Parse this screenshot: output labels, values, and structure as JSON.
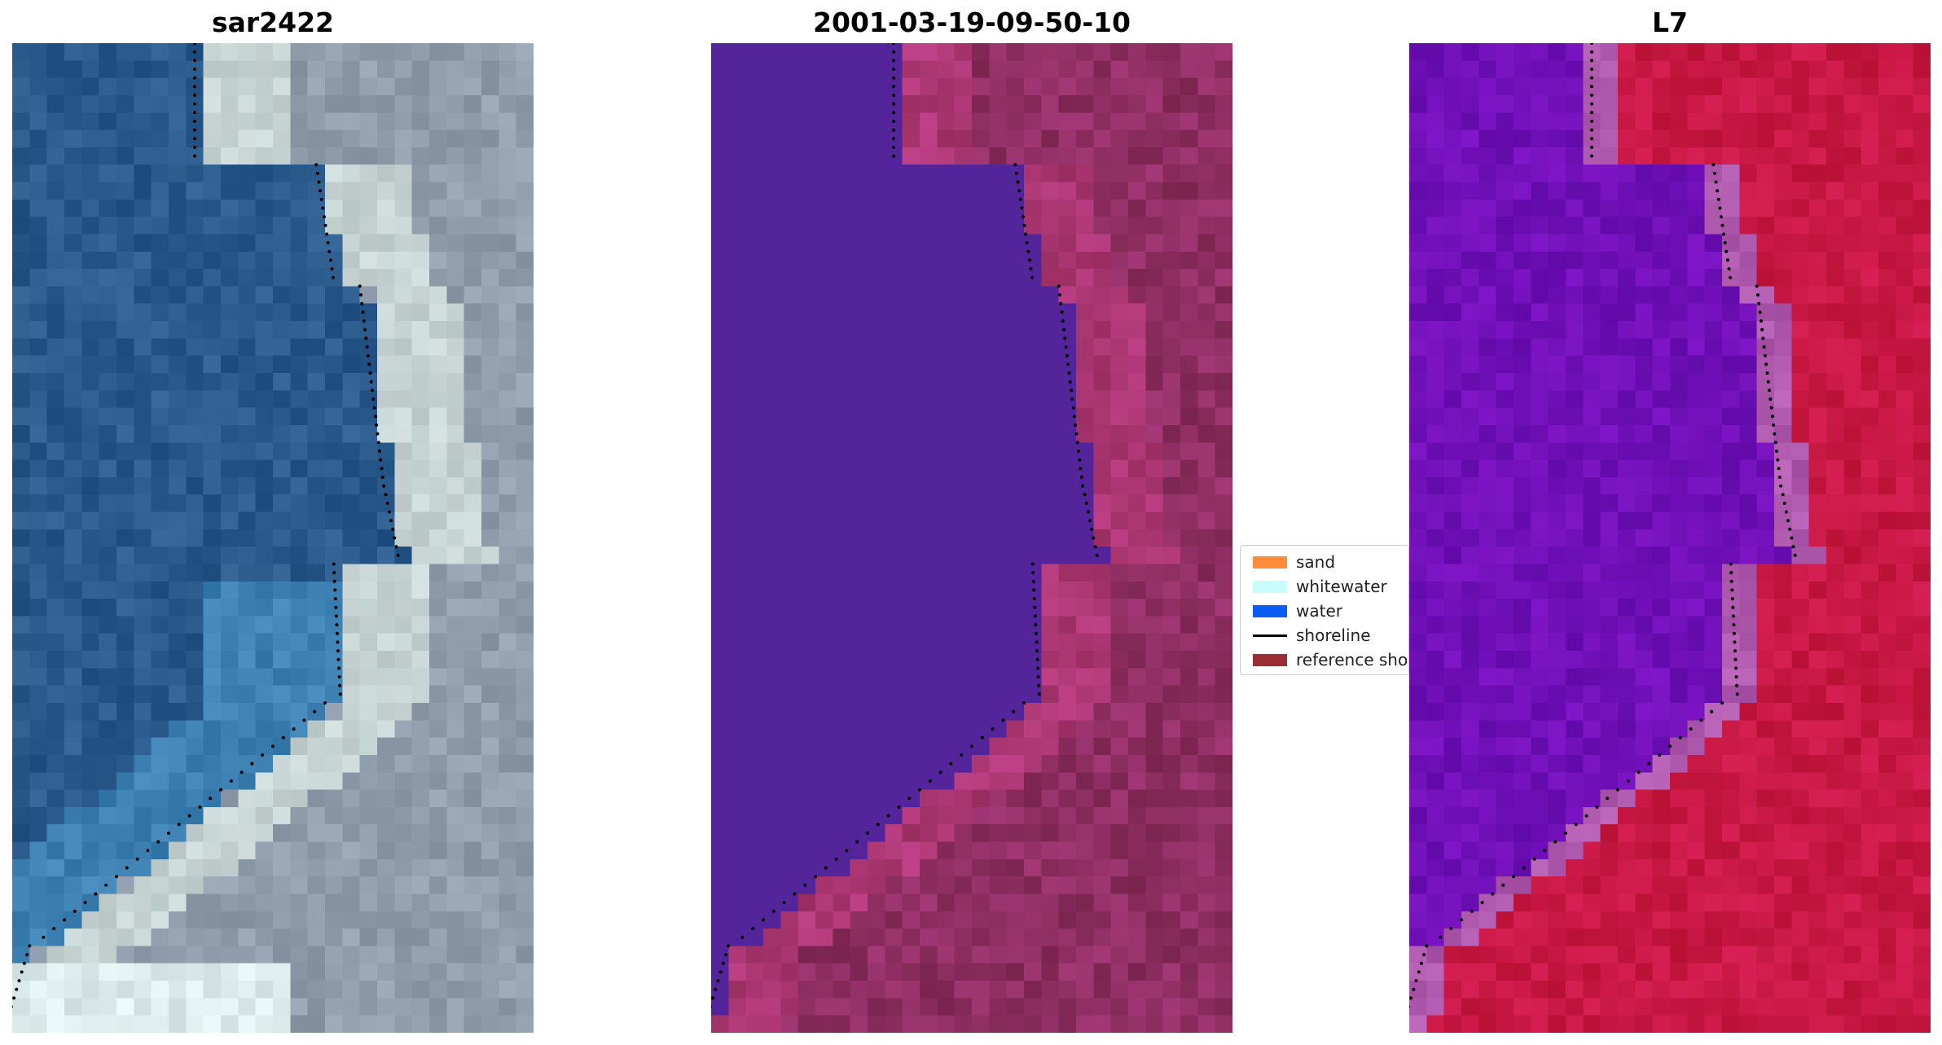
{
  "panels": [
    {
      "id": "rgb",
      "title": "sar2422"
    },
    {
      "id": "classified",
      "title": "2001-03-19-09-50-10"
    },
    {
      "id": "index",
      "title": "L7"
    }
  ],
  "legend": {
    "items": [
      {
        "label": "sand",
        "color": "#ff8c3a",
        "kind": "patch"
      },
      {
        "label": "whitewater",
        "color": "#c8fdff",
        "kind": "patch"
      },
      {
        "label": "water",
        "color": "#0a5cf5",
        "kind": "patch"
      },
      {
        "label": "shoreline",
        "color": "#000000",
        "kind": "line"
      },
      {
        "label": "reference shoreline",
        "color": "#9a2c33",
        "kind": "patch"
      }
    ]
  },
  "colors": {
    "water_class": "#53249a",
    "land_class": "#7a2e62",
    "index_water": "#7010b8",
    "index_land": "#c81844",
    "rgb_water": "#2a5a8c",
    "rgb_land": "#9aa7b4"
  }
}
